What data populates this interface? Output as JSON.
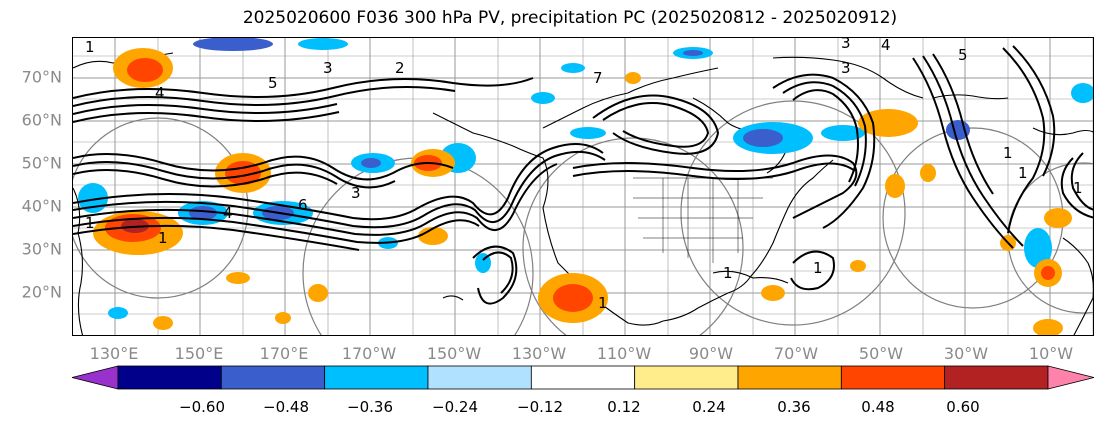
{
  "title": "2025020600 F036 300 hPa PV, precipitation PC (2025020812 - 2025020912)",
  "lat_labels": [
    "70°N",
    "60°N",
    "50°N",
    "40°N",
    "30°N",
    "20°N"
  ],
  "lon_labels": [
    "130°E",
    "150°E",
    "170°E",
    "170°W",
    "150°W",
    "130°W",
    "110°W",
    "90°W",
    "70°W",
    "50°W",
    "30°W",
    "10°W"
  ],
  "colorbar": {
    "colors": [
      "#9932cc",
      "#00008b",
      "#3a5fcd",
      "#00bfff",
      "#b0e2ff",
      "#ffffff",
      "#ffec8b",
      "#ffa500",
      "#ff4500",
      "#b22222",
      "#ff82ab"
    ],
    "tick_labels": [
      "−0.60",
      "−0.48",
      "−0.36",
      "−0.24",
      "−0.12",
      "0.12",
      "0.24",
      "0.36",
      "0.48",
      "0.60"
    ]
  },
  "contour_labels": [
    "1",
    "2",
    "3",
    "4",
    "5",
    "6",
    "7"
  ],
  "colors": {
    "contour": "#000000",
    "grid": "#999999",
    "circles": "#808080",
    "neg_strong": "#3a5fcd",
    "neg": "#00bfff",
    "pos": "#ffa500",
    "pos_strong": "#ff4500"
  }
}
